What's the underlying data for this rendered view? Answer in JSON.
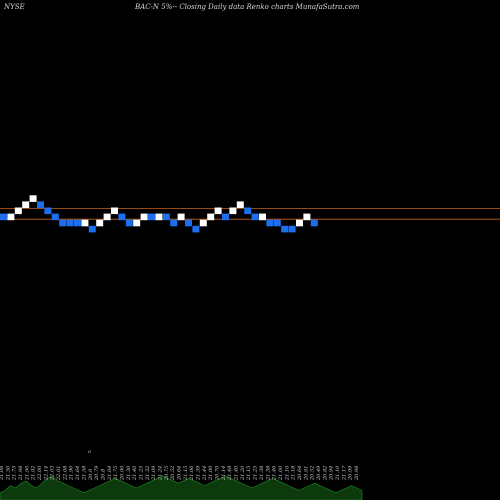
{
  "header": {
    "exchange": "NYSE",
    "title": "BAC-N  5%--  Closing Daily data  Renko  charts MunafaSutra.com"
  },
  "colors": {
    "background": "#000000",
    "brick_up": "#ffffff",
    "brick_down": "#1e6ff0",
    "ref_line": "#c8641e",
    "volume": "#0c3a0c",
    "volume_edge": "#1f8a1f"
  },
  "chart_data": {
    "type": "renko",
    "levels": [
      3,
      3,
      4,
      5,
      6,
      5,
      4,
      3,
      2,
      2,
      2,
      2,
      1,
      2,
      3,
      4,
      3,
      2,
      2,
      3,
      3,
      3,
      3,
      2,
      3,
      2,
      1,
      2,
      3,
      4,
      3,
      4,
      5,
      4,
      3,
      3,
      2,
      2,
      1,
      1,
      2,
      3,
      2
    ],
    "directions": [
      "down",
      "up",
      "up",
      "up",
      "up",
      "down",
      "down",
      "down",
      "down",
      "down",
      "down",
      "up",
      "down",
      "up",
      "up",
      "up",
      "down",
      "down",
      "up",
      "up",
      "down",
      "up",
      "down",
      "down",
      "up",
      "down",
      "down",
      "up",
      "up",
      "up",
      "down",
      "up",
      "up",
      "down",
      "down",
      "up",
      "down",
      "down",
      "down",
      "down",
      "up",
      "up",
      "down"
    ],
    "reference_levels": [
      5,
      3
    ],
    "x_ticks": [
      "21.08",
      "21.50",
      "21.75",
      "21.98",
      "21.90",
      "21.92",
      "22.00",
      "22.14",
      "22.03",
      "22.01",
      "22.08",
      "21.90",
      "21.64",
      "21.58",
      "20.9",
      "20.79",
      "20.8",
      "21.04",
      "21.75",
      "20.90",
      "21.30",
      "21.40",
      "21.25",
      "21.32",
      "21.09",
      "21.24",
      "20.75",
      "20.52",
      "20.64",
      "21.15",
      "21.06",
      "21.39",
      "21.44",
      "21.00",
      "20.70",
      "21.14",
      "21.48",
      "21.40",
      "21.20",
      "21.15",
      "21.25",
      "21.38",
      "21.38",
      "21.46",
      "21.00",
      "21.10",
      "21.18",
      "20.64",
      "20.91",
      "20.52",
      "20.49",
      "20.82",
      "20.94",
      "21.10",
      "21.17",
      "20.99",
      "20.98"
    ],
    "volume": [
      3,
      4,
      6,
      5,
      7,
      8,
      6,
      5,
      7,
      9,
      10,
      8,
      7,
      6,
      5,
      4,
      3,
      4,
      5,
      6,
      7,
      8,
      9,
      8,
      7,
      6,
      5,
      6,
      7,
      8,
      9,
      10,
      9,
      8,
      7,
      8,
      9,
      8,
      7,
      6,
      7,
      8,
      9,
      10,
      9,
      8,
      7,
      6,
      5,
      6,
      7,
      8,
      9,
      8,
      7,
      6,
      5,
      4,
      5,
      6,
      7,
      6,
      5,
      4,
      3,
      4,
      5,
      6,
      5,
      4
    ],
    "marker": "o"
  }
}
